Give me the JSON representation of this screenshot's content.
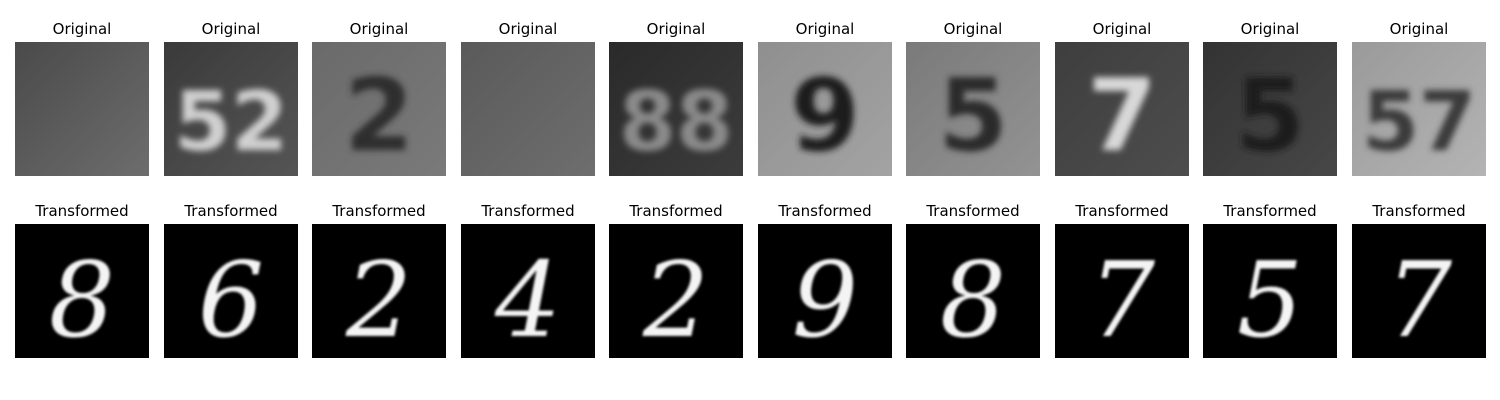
{
  "figure": {
    "rows": [
      {
        "row_name": "original-row",
        "panels": [
          {
            "title": "Original",
            "digit": "​",
            "style": "svhn-blur"
          },
          {
            "title": "Original",
            "digit": "52",
            "style": "svhn-dark"
          },
          {
            "title": "Original",
            "digit": "2",
            "style": "svhn-mid"
          },
          {
            "title": "Original",
            "digit": "​",
            "style": "svhn-blur2"
          },
          {
            "title": "Original",
            "digit": "88",
            "style": "svhn-darker"
          },
          {
            "title": "Original",
            "digit": "9",
            "style": "svhn-light"
          },
          {
            "title": "Original",
            "digit": "5",
            "style": "svhn-mid2"
          },
          {
            "title": "Original",
            "digit": "7",
            "style": "svhn-dark2"
          },
          {
            "title": "Original",
            "digit": "5",
            "style": "svhn-darker2"
          },
          {
            "title": "Original",
            "digit": "57",
            "style": "svhn-light2"
          }
        ]
      },
      {
        "row_name": "transformed-row",
        "panels": [
          {
            "title": "Transformed",
            "digit": "8"
          },
          {
            "title": "Transformed",
            "digit": "6"
          },
          {
            "title": "Transformed",
            "digit": "2"
          },
          {
            "title": "Transformed",
            "digit": "4"
          },
          {
            "title": "Transformed",
            "digit": "2"
          },
          {
            "title": "Transformed",
            "digit": "9"
          },
          {
            "title": "Transformed",
            "digit": "8"
          },
          {
            "title": "Transformed",
            "digit": "7"
          },
          {
            "title": "Transformed",
            "digit": "5"
          },
          {
            "title": "Transformed",
            "digit": "7"
          }
        ]
      }
    ]
  }
}
